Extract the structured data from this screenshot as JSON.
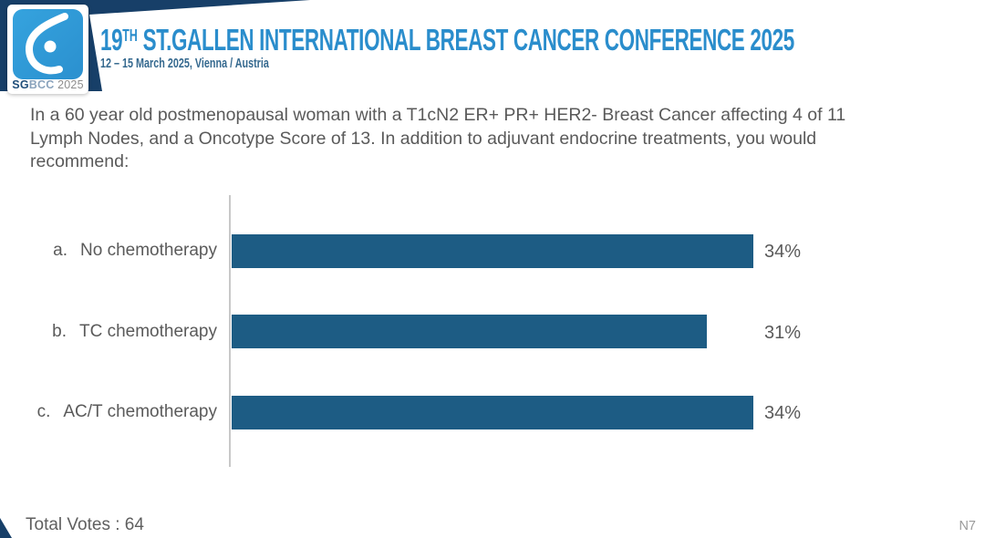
{
  "header": {
    "logo": {
      "glyph": "sgbcc-breast-icon",
      "badge_sg": "SG",
      "badge_bcc": "BCC",
      "badge_year": " 2025"
    },
    "title_number": "19",
    "title_ordinal": "TH",
    "title_rest": " ST.GALLEN INTERNATIONAL BREAST CANCER CONFERENCE 2025",
    "subtitle": "12 – 15 March 2025, Vienna / Austria"
  },
  "question": {
    "lines": [
      "In a 60 year old postmenopausal woman with a T1cN2 ER+ PR+ HER2- Breast Cancer affecting 4 of 11",
      "Lymph Nodes, and a Oncotype Score of 13. In addition to adjuvant endocrine treatments, you would",
      "recommend:"
    ]
  },
  "chart_data": {
    "type": "bar",
    "orientation": "horizontal",
    "option_letters": [
      "a.",
      "b.",
      "c."
    ],
    "categories": [
      "No chemotherapy",
      "TC chemotherapy",
      "AC/T chemotherapy"
    ],
    "values": [
      34,
      31,
      34
    ],
    "value_labels": [
      "34%",
      "31%",
      "34%"
    ],
    "unit": "percent",
    "xlim": [
      0,
      40
    ],
    "grid": false,
    "legend": false,
    "bar_color": "#1d5c84",
    "axis_color": "#c8c8c8",
    "label_color": "#5a5a5a"
  },
  "footer": {
    "total_votes": "Total Votes : 64",
    "slide_code": "N7"
  },
  "colors": {
    "corner_navy": "#173f68",
    "logo_blue": "#2e9ad6",
    "title_blue": "#2a8dcc",
    "subtitle_blue": "#35698f",
    "text_gray": "#5a5a5a"
  }
}
